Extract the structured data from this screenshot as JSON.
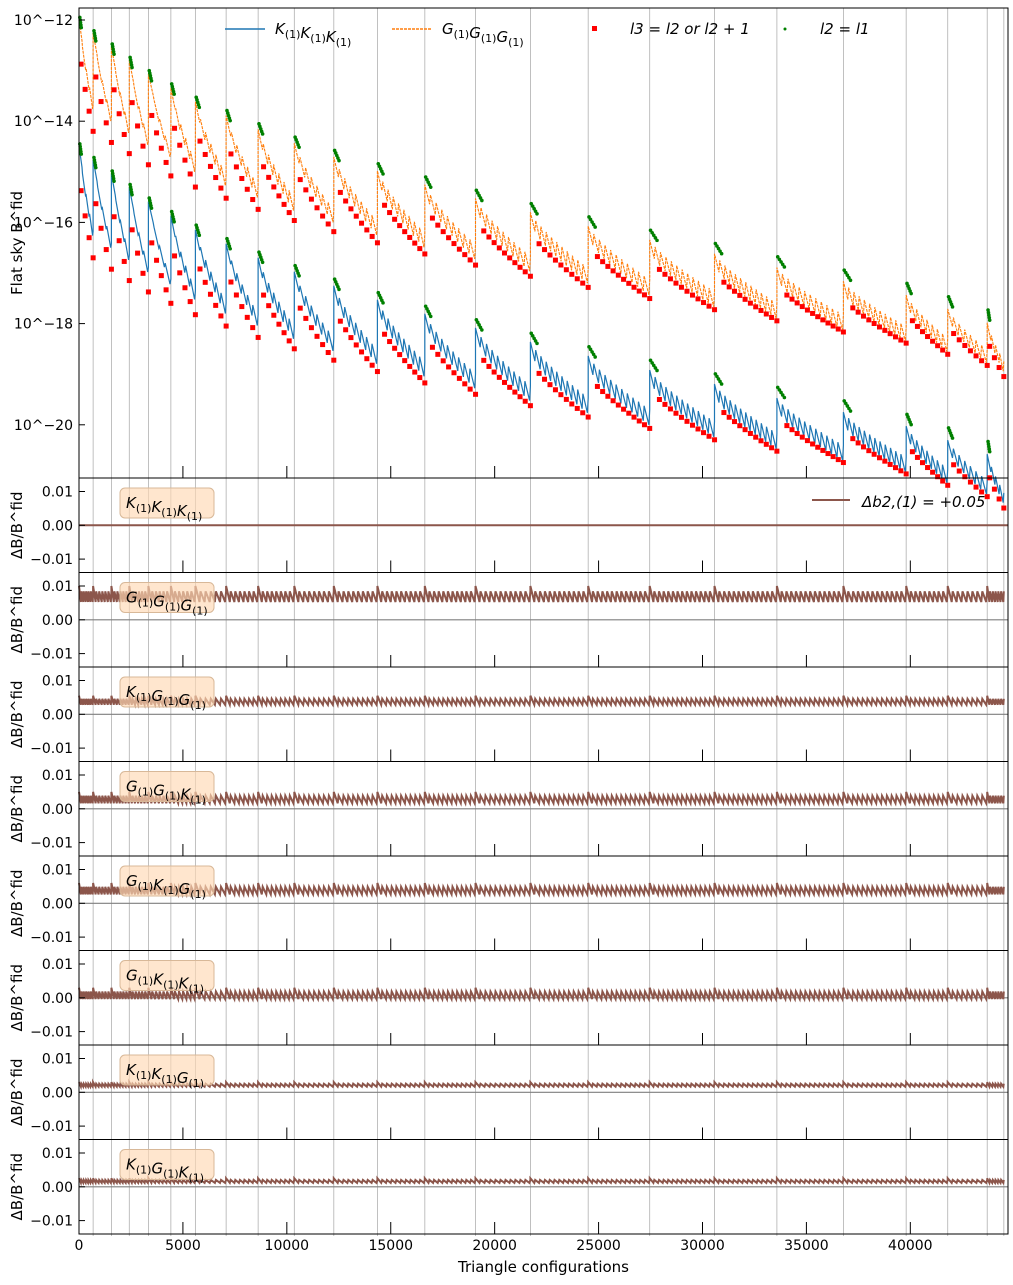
{
  "chart_data": [
    {
      "type": "line",
      "panel": "main",
      "ylabel": "Flat sky B^fid",
      "yscale": "log",
      "ylim": [
        1e-21,
        1e-12
      ],
      "xlim": [
        0,
        44700
      ],
      "yticks": [
        -12,
        -14,
        -16,
        -18,
        -20
      ],
      "ytick_labels": [
        "10^−12",
        "10^−14",
        "10^−16",
        "10^−18",
        "10^−20"
      ],
      "grid": "vertical lines at group boundaries",
      "legend_placement": "top",
      "group_boundaries": [
        680,
        1560,
        2420,
        3340,
        4420,
        5600,
        7080,
        8620,
        10360,
        12260,
        14360,
        16640,
        19080,
        21720,
        24500,
        27460,
        30580,
        33580,
        36780,
        39800,
        41800,
        43700,
        44500
      ],
      "series": [
        {
          "name": "K(1)K(1)K(1)",
          "color": "#1f77b4",
          "style": "solid",
          "start_exp": -14.7,
          "end_exp": -20.7,
          "min_exp_drop": 1.7
        },
        {
          "name": "G(1)G(1)G(1)",
          "color": "#ff7f0e",
          "style": "dashed",
          "start_exp": -12.2,
          "end_exp": -18.1,
          "min_exp_drop": 1.7
        },
        {
          "name": "l3 = l2 or l2 + 1",
          "color": "#ff0000",
          "style": "square-marker"
        },
        {
          "name": "l2 = l1",
          "color": "#008000",
          "style": "dot-marker"
        }
      ],
      "legend": {
        "kkk": "K(1)K(1)K(1)",
        "ggg": "G(1)G(1)G(1)",
        "red_prefix": "l3 = l2 or l2 + 1",
        "green": "l2 = l1"
      }
    },
    {
      "type": "line",
      "panel": "residuals",
      "ylabel": "ΔB/B^fid",
      "ylim": [
        -0.014,
        0.014
      ],
      "yticks": [
        0.01,
        0.0,
        -0.01
      ],
      "ytick_labels": [
        "0.01",
        "0.00",
        "−0.01"
      ],
      "xlabel": "Triangle configurations",
      "xticks": [
        0,
        5000,
        10000,
        15000,
        20000,
        25000,
        30000,
        35000,
        40000
      ],
      "xtick_labels": [
        "0",
        "5000",
        "10000",
        "15000",
        "20000",
        "25000",
        "30000",
        "35000",
        "40000"
      ],
      "series_color": "#8c564b",
      "legend_label": "Δb2,(1) = +0.05",
      "panels": [
        {
          "label": "K(1)K(1)K(1)",
          "base": 0.0,
          "amp": 0.0
        },
        {
          "label": "G(1)G(1)G(1)",
          "base": 0.0065,
          "amp": 0.0035
        },
        {
          "label": "K(1)G(1)G(1)",
          "base": 0.0035,
          "amp": 0.002
        },
        {
          "label": "G(1)G(1)K(1)",
          "base": 0.0025,
          "amp": 0.0025
        },
        {
          "label": "G(1)K(1)G(1)",
          "base": 0.0035,
          "amp": 0.0025
        },
        {
          "label": "G(1)K(1)K(1)",
          "base": 0.0005,
          "amp": 0.0025
        },
        {
          "label": "K(1)K(1)G(1)",
          "base": 0.002,
          "amp": 0.001
        },
        {
          "label": "K(1)G(1)K(1)",
          "base": 0.0015,
          "amp": 0.001
        }
      ]
    }
  ]
}
